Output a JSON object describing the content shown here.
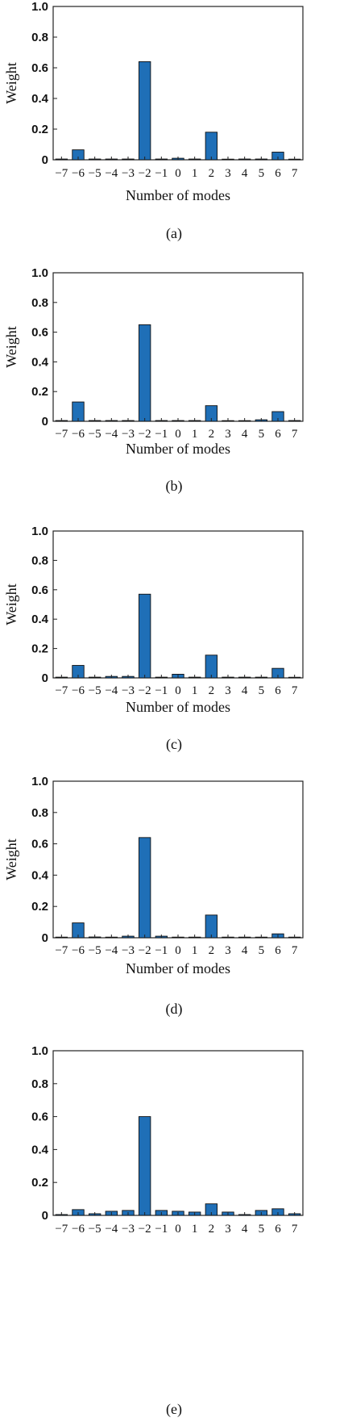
{
  "chart_data": [
    {
      "type": "bar",
      "panel_label": "(a)",
      "ylabel": "Weight",
      "xlabel": "Number of modes",
      "ylim": [
        0,
        1.0
      ],
      "yticks": [
        "0",
        "0.2",
        "0.4",
        "0.6",
        "0.8",
        "1.0"
      ],
      "categories": [
        "−7",
        "−6",
        "−5",
        "−4",
        "−3",
        "−2",
        "−1",
        "0",
        "1",
        "2",
        "3",
        "4",
        "5",
        "6",
        "7"
      ],
      "values": [
        0.005,
        0.065,
        0.005,
        0.005,
        0.005,
        0.64,
        0.005,
        0.01,
        0.005,
        0.18,
        0.0,
        0.005,
        0.005,
        0.05,
        0.0
      ],
      "bar_color": "#1f6fb7"
    },
    {
      "type": "bar",
      "panel_label": "(b)",
      "ylabel": "Weight",
      "xlabel": "Number of modes",
      "ylim": [
        0,
        1.0
      ],
      "yticks": [
        "0",
        "0.2",
        "0.4",
        "0.6",
        "0.8",
        "1.0"
      ],
      "categories": [
        "−7",
        "−6",
        "−5",
        "−4",
        "−3",
        "−2",
        "−1",
        "0",
        "1",
        "2",
        "3",
        "4",
        "5",
        "6",
        "7"
      ],
      "values": [
        0.005,
        0.13,
        0.005,
        0.005,
        0.005,
        0.65,
        0.005,
        0.005,
        0.005,
        0.105,
        0.0,
        0.0,
        0.01,
        0.065,
        0.005
      ],
      "bar_color": "#1f6fb7"
    },
    {
      "type": "bar",
      "panel_label": "(c)",
      "ylabel": "Weight",
      "xlabel": "Number of modes",
      "ylim": [
        0,
        1.0
      ],
      "yticks": [
        "0",
        "0.2",
        "0.4",
        "0.6",
        "0.8",
        "1.0"
      ],
      "categories": [
        "−7",
        "−6",
        "−5",
        "−4",
        "−3",
        "−2",
        "−1",
        "0",
        "1",
        "2",
        "3",
        "4",
        "5",
        "6",
        "7"
      ],
      "values": [
        0.005,
        0.085,
        0.005,
        0.01,
        0.01,
        0.57,
        0.005,
        0.025,
        0.005,
        0.155,
        0.005,
        0.005,
        0.005,
        0.065,
        0.0
      ],
      "bar_color": "#1f6fb7"
    },
    {
      "type": "bar",
      "panel_label": "(d)",
      "ylabel": "Weight",
      "xlabel": "Number of modes",
      "ylim": [
        0,
        1.0
      ],
      "yticks": [
        "0",
        "0.2",
        "0.4",
        "0.6",
        "0.8",
        "1.0"
      ],
      "categories": [
        "−7",
        "−6",
        "−5",
        "−4",
        "−3",
        "−2",
        "−1",
        "0",
        "1",
        "2",
        "3",
        "4",
        "5",
        "6",
        "7"
      ],
      "values": [
        0.0,
        0.095,
        0.005,
        0.0,
        0.01,
        0.64,
        0.01,
        0.0,
        0.0,
        0.145,
        0.0,
        0.0,
        0.0,
        0.025,
        0.0
      ],
      "bar_color": "#1f6fb7"
    },
    {
      "type": "bar",
      "panel_label": "(e)",
      "ylabel": "",
      "xlabel": "",
      "ylim": [
        0,
        1.0
      ],
      "yticks": [
        "0",
        "0.2",
        "0.4",
        "0.6",
        "0.8",
        "1.0"
      ],
      "categories": [
        "−7",
        "−6",
        "−5",
        "−4",
        "−3",
        "−2",
        "−1",
        "0",
        "1",
        "2",
        "3",
        "4",
        "5",
        "6",
        "7"
      ],
      "values": [
        0.005,
        0.035,
        0.01,
        0.025,
        0.03,
        0.6,
        0.03,
        0.025,
        0.02,
        0.07,
        0.02,
        0.005,
        0.03,
        0.04,
        0.01
      ],
      "bar_color": "#1f6fb7"
    }
  ]
}
